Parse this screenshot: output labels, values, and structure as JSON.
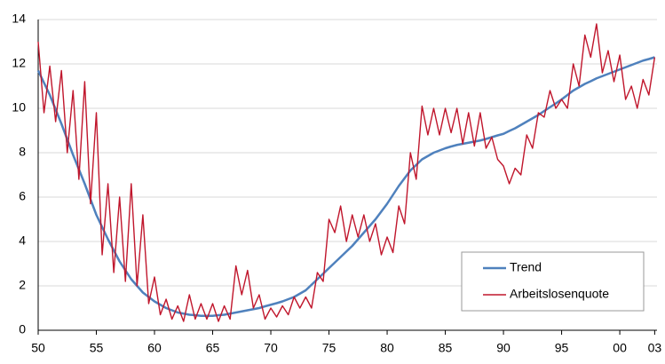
{
  "chart_data": {
    "type": "line",
    "x": [
      1950,
      1950.5,
      1951,
      1951.5,
      1952,
      1952.5,
      1953,
      1953.5,
      1954,
      1954.5,
      1955,
      1955.5,
      1956,
      1956.5,
      1957,
      1957.5,
      1958,
      1958.5,
      1959,
      1959.5,
      1960,
      1960.5,
      1961,
      1961.5,
      1962,
      1962.5,
      1963,
      1963.5,
      1964,
      1964.5,
      1965,
      1965.5,
      1966,
      1966.5,
      1967,
      1967.5,
      1968,
      1968.5,
      1969,
      1969.5,
      1970,
      1970.5,
      1971,
      1971.5,
      1972,
      1972.5,
      1973,
      1973.5,
      1974,
      1974.5,
      1975,
      1975.5,
      1976,
      1976.5,
      1977,
      1977.5,
      1978,
      1978.5,
      1979,
      1979.5,
      1980,
      1980.5,
      1981,
      1981.5,
      1982,
      1982.5,
      1983,
      1983.5,
      1984,
      1984.5,
      1985,
      1985.5,
      1986,
      1986.5,
      1987,
      1987.5,
      1988,
      1988.5,
      1989,
      1989.5,
      1990,
      1990.5,
      1991,
      1991.5,
      1992,
      1992.5,
      1993,
      1993.5,
      1994,
      1994.5,
      1995,
      1995.5,
      1996,
      1996.5,
      1997,
      1997.5,
      1998,
      1998.5,
      1999,
      1999.5,
      2000,
      2000.5,
      2001,
      2001.5,
      2002,
      2002.5,
      2003
    ],
    "series": [
      {
        "name": "Trend",
        "color": "#4f81bd",
        "width": 2.5,
        "values": [
          11.7,
          11.15,
          10.6,
          9.95,
          9.3,
          8.6,
          7.9,
          7.25,
          6.6,
          5.9,
          5.2,
          4.65,
          4.1,
          3.6,
          3.1,
          2.7,
          2.3,
          2.0,
          1.7,
          1.5,
          1.3,
          1.15,
          1.0,
          0.9,
          0.8,
          0.75,
          0.7,
          0.68,
          0.65,
          0.65,
          0.65,
          0.68,
          0.7,
          0.75,
          0.8,
          0.85,
          0.9,
          0.95,
          1.0,
          1.08,
          1.15,
          1.22,
          1.3,
          1.4,
          1.5,
          1.65,
          1.8,
          2.05,
          2.3,
          2.55,
          2.8,
          3.05,
          3.3,
          3.55,
          3.8,
          4.1,
          4.4,
          4.7,
          5.0,
          5.35,
          5.7,
          6.1,
          6.5,
          6.85,
          7.2,
          7.45,
          7.7,
          7.85,
          8.0,
          8.1,
          8.2,
          8.28,
          8.35,
          8.4,
          8.45,
          8.5,
          8.55,
          8.62,
          8.7,
          8.78,
          8.85,
          8.98,
          9.1,
          9.25,
          9.4,
          9.55,
          9.7,
          9.88,
          10.05,
          10.22,
          10.4,
          10.6,
          10.8,
          10.95,
          11.1,
          11.22,
          11.35,
          11.45,
          11.55,
          11.65,
          11.75,
          11.85,
          11.95,
          12.05,
          12.15,
          12.22,
          12.3
        ]
      },
      {
        "name": "Arbeitslosenquote",
        "color": "#c0162c",
        "width": 1.4,
        "values": [
          13.0,
          9.8,
          11.9,
          9.4,
          11.7,
          8.0,
          10.8,
          6.8,
          11.2,
          5.7,
          9.8,
          3.4,
          6.6,
          2.6,
          6.0,
          2.2,
          6.6,
          2.0,
          5.2,
          1.2,
          2.4,
          0.7,
          1.4,
          0.5,
          1.1,
          0.4,
          1.6,
          0.5,
          1.2,
          0.5,
          1.2,
          0.4,
          1.1,
          0.5,
          2.9,
          1.6,
          2.7,
          1.0,
          1.6,
          0.5,
          1.0,
          0.6,
          1.1,
          0.7,
          1.5,
          1.0,
          1.5,
          1.0,
          2.6,
          2.2,
          5.0,
          4.4,
          5.6,
          4.0,
          5.2,
          4.2,
          5.2,
          4.0,
          4.8,
          3.4,
          4.2,
          3.5,
          5.6,
          4.8,
          8.0,
          6.8,
          10.1,
          8.8,
          10.0,
          8.8,
          10.0,
          8.9,
          10.0,
          8.4,
          9.8,
          8.3,
          9.8,
          8.2,
          8.7,
          7.7,
          7.4,
          6.6,
          7.3,
          7.0,
          8.8,
          8.2,
          9.8,
          9.6,
          10.8,
          10.0,
          10.4,
          10.0,
          12.0,
          11.0,
          13.3,
          12.3,
          13.8,
          11.6,
          12.6,
          11.2,
          12.4,
          10.4,
          11.0,
          10.0,
          11.3,
          10.6,
          12.3
        ]
      }
    ],
    "xlim": [
      1950,
      2003.2
    ],
    "xticks": [
      {
        "value": 1950,
        "label": "50"
      },
      {
        "value": 1955,
        "label": "55"
      },
      {
        "value": 1960,
        "label": "60"
      },
      {
        "value": 1965,
        "label": "65"
      },
      {
        "value": 1970,
        "label": "70"
      },
      {
        "value": 1975,
        "label": "75"
      },
      {
        "value": 1980,
        "label": "80"
      },
      {
        "value": 1985,
        "label": "85"
      },
      {
        "value": 1990,
        "label": "90"
      },
      {
        "value": 1995,
        "label": "95"
      },
      {
        "value": 2000,
        "label": "00"
      },
      {
        "value": 2003,
        "label": "03"
      }
    ],
    "ylim": [
      0,
      14
    ],
    "yticks": [
      0,
      2,
      4,
      6,
      8,
      10,
      12,
      14
    ],
    "grid": true,
    "legend": "lower right"
  }
}
